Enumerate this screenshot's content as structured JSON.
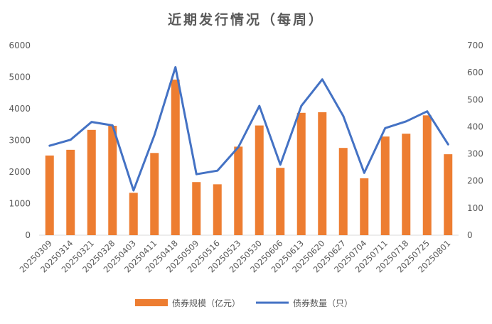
{
  "chart_data": {
    "type": "bar",
    "title": "近期发行情况（每周）",
    "categories": [
      "20250309",
      "20250314",
      "20250321",
      "20250328",
      "20250403",
      "20250411",
      "20250418",
      "20250509",
      "20250516",
      "20250523",
      "20250530",
      "20250606",
      "20250613",
      "20250620",
      "20250627",
      "20250704",
      "20250711",
      "20250718",
      "20250725",
      "20250801"
    ],
    "y_ticks": [
      "0",
      "1000",
      "2000",
      "3000",
      "4000",
      "5000",
      "6000"
    ],
    "y2_ticks": [
      "0",
      "100",
      "200",
      "300",
      "400",
      "500",
      "600",
      "700"
    ],
    "ylim": [
      0,
      6000
    ],
    "y2lim": [
      0,
      700
    ],
    "grid": false,
    "legend_position": "bottom",
    "series": [
      {
        "name": "债券规模（亿元）",
        "type": "bar",
        "axis": "left",
        "color": "#ED7D31",
        "values": [
          2520,
          2700,
          3330,
          3460,
          1340,
          2600,
          4920,
          1680,
          1610,
          2800,
          3470,
          2130,
          3870,
          3890,
          2760,
          1800,
          3120,
          3210,
          3790,
          2560
        ]
      },
      {
        "name": "债券数量（只）",
        "type": "line",
        "axis": "right",
        "color": "#4472C4",
        "values": [
          330,
          352,
          418,
          405,
          165,
          370,
          620,
          225,
          238,
          325,
          477,
          260,
          477,
          575,
          440,
          230,
          395,
          420,
          457,
          335
        ]
      }
    ]
  }
}
